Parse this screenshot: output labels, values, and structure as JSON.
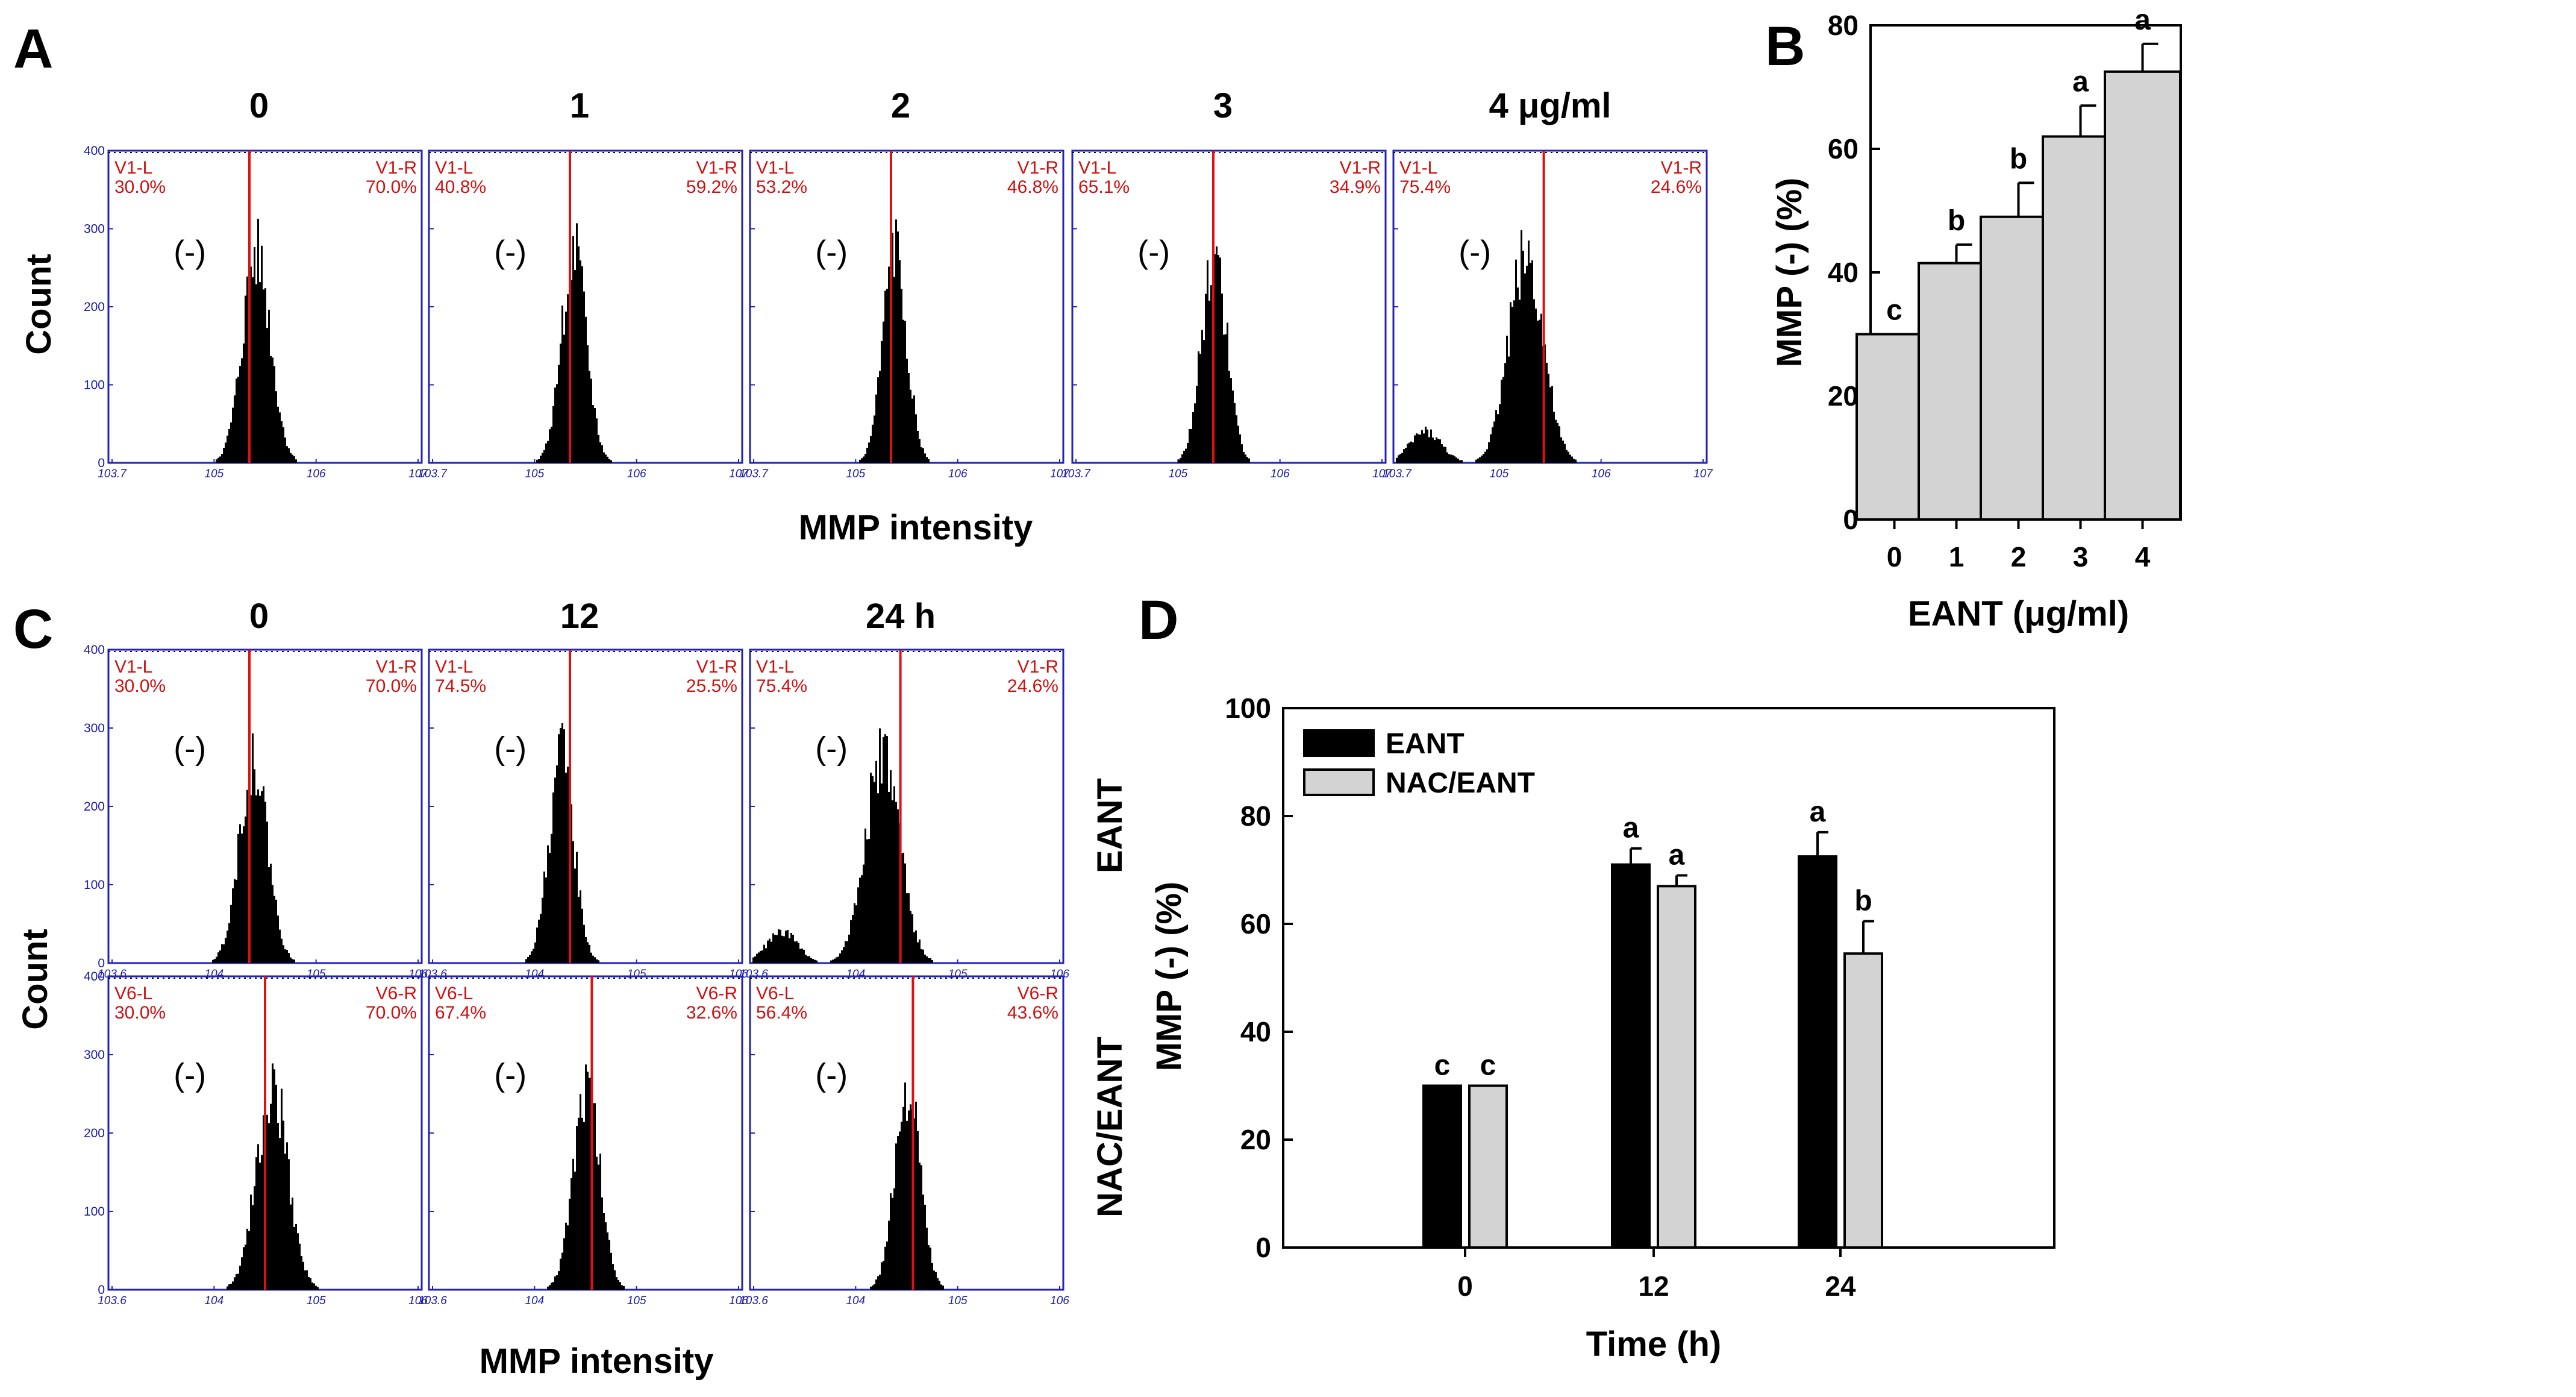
{
  "panels": {
    "A": {
      "letter": "A",
      "xlabel": "MMP intensity",
      "ylabel": "Count",
      "histograms": [
        {
          "title": "0",
          "gate_left": "V1-L",
          "gate_right": "V1-R",
          "pct_left": "30.0%",
          "pct_right": "70.0%",
          "neg_label": "(-)"
        },
        {
          "title": "1",
          "gate_left": "V1-L",
          "gate_right": "V1-R",
          "pct_left": "40.8%",
          "pct_right": "59.2%",
          "neg_label": "(-)"
        },
        {
          "title": "2",
          "gate_left": "V1-L",
          "gate_right": "V1-R",
          "pct_left": "53.2%",
          "pct_right": "46.8%",
          "neg_label": "(-)"
        },
        {
          "title": "3",
          "gate_left": "V1-L",
          "gate_right": "V1-R",
          "pct_left": "65.1%",
          "pct_right": "34.9%",
          "neg_label": "(-)"
        },
        {
          "title": "4 μg/ml",
          "gate_left": "V1-L",
          "gate_right": "V1-R",
          "pct_left": "75.4%",
          "pct_right": "24.6%",
          "neg_label": "(-)"
        }
      ],
      "y_ticks": [
        "0",
        "100",
        "200",
        "300",
        "400"
      ],
      "x_ticks": [
        "10^3.7",
        "10^5",
        "10^6",
        "10^7"
      ]
    },
    "C": {
      "letter": "C",
      "xlabel": "MMP intensity",
      "ylabel": "Count",
      "col_titles": [
        "0",
        "12",
        "24 h"
      ],
      "row_labels": [
        "EANT",
        "NAC/EANT"
      ],
      "rows": [
        [
          {
            "gate_left": "V1-L",
            "gate_right": "V1-R",
            "pct_left": "30.0%",
            "pct_right": "70.0%",
            "neg_label": "(-)"
          },
          {
            "gate_left": "V1-L",
            "gate_right": "V1-R",
            "pct_left": "74.5%",
            "pct_right": "25.5%",
            "neg_label": "(-)"
          },
          {
            "gate_left": "V1-L",
            "gate_right": "V1-R",
            "pct_left": "75.4%",
            "pct_right": "24.6%",
            "neg_label": "(-)"
          }
        ],
        [
          {
            "gate_left": "V6-L",
            "gate_right": "V6-R",
            "pct_left": "30.0%",
            "pct_right": "70.0%",
            "neg_label": "(-)"
          },
          {
            "gate_left": "V6-L",
            "gate_right": "V6-R",
            "pct_left": "67.4%",
            "pct_right": "32.6%",
            "neg_label": "(-)"
          },
          {
            "gate_left": "V6-L",
            "gate_right": "V6-R",
            "pct_left": "56.4%",
            "pct_right": "43.6%",
            "neg_label": "(-)"
          }
        ]
      ],
      "y_ticks": [
        "0",
        "100",
        "200",
        "300",
        "400"
      ],
      "x_ticks": [
        "10^3.6",
        "10^4",
        "10^5",
        "10^6"
      ]
    },
    "B": {
      "letter": "B"
    },
    "D": {
      "letter": "D"
    }
  },
  "chart_data": [
    {
      "id": "B",
      "type": "bar",
      "categories": [
        "0",
        "1",
        "2",
        "3",
        "4"
      ],
      "values": [
        30.0,
        41.5,
        49.0,
        62.0,
        72.5
      ],
      "errors": [
        0.0,
        3.0,
        5.5,
        5.0,
        4.5
      ],
      "sig_letters": [
        "c",
        "b",
        "b",
        "a",
        "a"
      ],
      "xlabel": "EANT (μg/ml)",
      "ylabel": "MMP (-) (%)",
      "ylim": [
        0,
        80
      ],
      "yticks": [
        0,
        20,
        40,
        60,
        80
      ],
      "bar_color": "#d3d3d3",
      "grid": false
    },
    {
      "id": "D",
      "type": "bar",
      "categories": [
        "0",
        "12",
        "24"
      ],
      "series": [
        {
          "name": "EANT",
          "values": [
            30.0,
            71.0,
            72.5
          ],
          "errors": [
            0.0,
            3.0,
            4.5
          ],
          "sig_letters": [
            "c",
            "a",
            "a"
          ],
          "color": "#000000"
        },
        {
          "name": "NAC/EANT",
          "values": [
            30.0,
            67.0,
            54.5
          ],
          "errors": [
            0.0,
            2.0,
            6.0
          ],
          "sig_letters": [
            "c",
            "a",
            "b"
          ],
          "color": "#d3d3d3"
        }
      ],
      "xlabel": "Time (h)",
      "ylabel": "MMP (-) (%)",
      "ylim": [
        0,
        100
      ],
      "yticks": [
        0,
        20,
        40,
        60,
        80,
        100
      ],
      "legend": "top-left",
      "grid": false
    }
  ]
}
